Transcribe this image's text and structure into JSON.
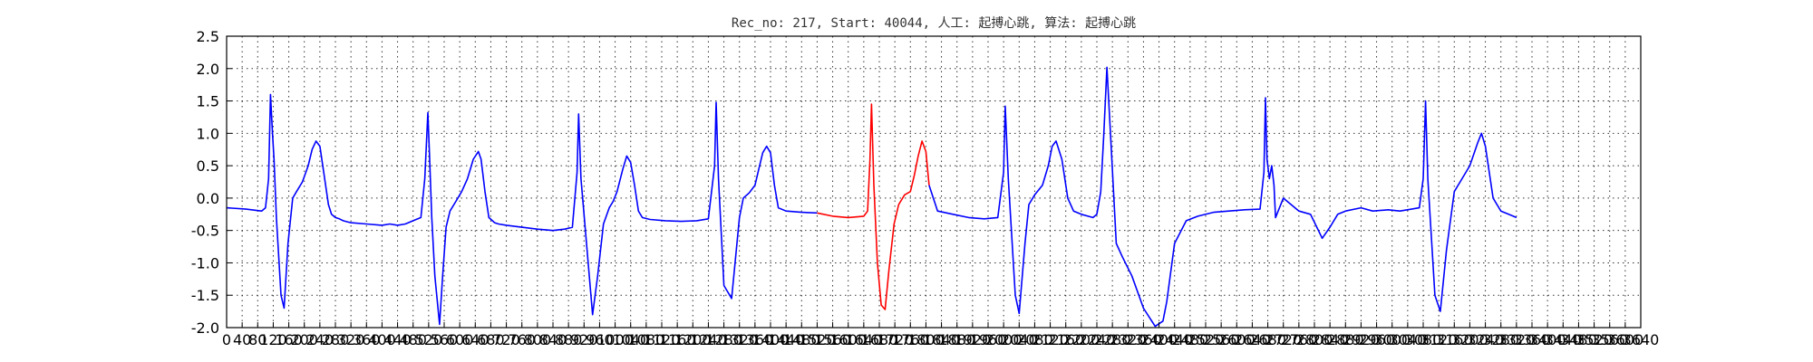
{
  "chart_data": {
    "type": "line",
    "title": "Rec_no: 217, Start: 40044, 人工: 起搏心跳, 算法: 起搏心跳",
    "xlabel": "",
    "ylabel": "",
    "xlim": [
      0,
      3640
    ],
    "ylim": [
      -2.0,
      2.5
    ],
    "grid": true,
    "xtick_step": 40,
    "y_ticks": [
      -2.0,
      -1.5,
      -1.0,
      -0.5,
      0.0,
      0.5,
      1.0,
      1.5,
      2.0,
      2.5
    ],
    "series": [
      {
        "color": "#0000ff",
        "x": [
          0,
          50,
          90,
          100,
          108,
          113,
          118,
          122,
          128,
          140,
          148,
          158,
          170,
          180,
          195,
          210,
          220,
          230,
          240,
          250,
          262,
          270,
          280,
          290,
          300,
          320,
          360,
          400,
          420,
          440,
          460,
          480,
          500,
          510,
          518,
          522,
          528,
          536,
          548,
          556,
          565,
          575,
          590,
          605,
          620,
          635,
          648,
          655,
          665,
          675,
          690,
          700,
          720,
          760,
          800,
          840,
          870,
          890,
          902,
          906,
          912,
          925,
          942,
          955,
          970,
          985,
          995,
          1005,
          1020,
          1030,
          1040,
          1050,
          1060,
          1070,
          1090,
          1130,
          1170,
          1210,
          1240,
          1256,
          1260,
          1266,
          1280,
          1300,
          1320,
          1330,
          1345,
          1360,
          1370,
          1380,
          1390,
          1400,
          1410,
          1420,
          1440,
          1480,
          1520
        ],
        "y": [
          -0.15,
          -0.17,
          -0.2,
          -0.15,
          0.3,
          1.6,
          1.0,
          0.6,
          -0.3,
          -1.5,
          -1.7,
          -0.7,
          0.0,
          0.1,
          0.25,
          0.5,
          0.75,
          0.88,
          0.8,
          0.4,
          -0.1,
          -0.25,
          -0.3,
          -0.32,
          -0.35,
          -0.38,
          -0.4,
          -0.42,
          -0.4,
          -0.42,
          -0.4,
          -0.35,
          -0.3,
          0.3,
          1.32,
          0.7,
          -0.3,
          -1.2,
          -1.95,
          -1.2,
          -0.45,
          -0.2,
          -0.05,
          0.1,
          0.3,
          0.6,
          0.72,
          0.6,
          0.1,
          -0.3,
          -0.38,
          -0.4,
          -0.42,
          -0.45,
          -0.48,
          -0.5,
          -0.48,
          -0.45,
          0.4,
          1.3,
          0.3,
          -0.6,
          -1.8,
          -1.2,
          -0.4,
          -0.15,
          -0.05,
          0.1,
          0.45,
          0.65,
          0.55,
          0.2,
          -0.2,
          -0.3,
          -0.33,
          -0.35,
          -0.36,
          -0.35,
          -0.32,
          0.5,
          1.48,
          0.3,
          -1.35,
          -1.55,
          -0.3,
          0.0,
          0.08,
          0.2,
          0.45,
          0.7,
          0.8,
          0.7,
          0.2,
          -0.15,
          -0.2,
          -0.22,
          -0.23
        ]
      },
      {
        "color": "#ff0000",
        "x": [
          1520,
          1560,
          1600,
          1640,
          1650,
          1656,
          1660,
          1666,
          1675,
          1685,
          1695,
          1705,
          1718,
          1730,
          1745,
          1760,
          1770,
          1780,
          1790,
          1800,
          1808
        ],
        "y": [
          -0.23,
          -0.28,
          -0.3,
          -0.28,
          -0.2,
          0.6,
          1.45,
          0.2,
          -1.0,
          -1.65,
          -1.72,
          -1.1,
          -0.4,
          -0.1,
          0.05,
          0.1,
          0.35,
          0.65,
          0.88,
          0.72,
          0.2
        ]
      },
      {
        "color": "#0000ff",
        "x": [
          1808,
          1830,
          1870,
          1910,
          1950,
          1985,
          2000,
          2004,
          2012,
          2030,
          2040,
          2055,
          2065,
          2080,
          2100,
          2115,
          2125,
          2135,
          2150,
          2165,
          2180,
          2200,
          2230,
          2240,
          2250,
          2258,
          2266,
          2275,
          2290,
          2305,
          2330,
          2360,
          2390,
          2410,
          2420,
          2440,
          2470,
          2500,
          2540,
          2580,
          2620,
          2660,
          2670,
          2674,
          2678,
          2684,
          2690,
          2696,
          2700,
          2720,
          2760,
          2790,
          2820,
          2840,
          2860,
          2880,
          2920,
          2950,
          2990,
          3020,
          3050,
          3070,
          3080,
          3086,
          3092,
          3110,
          3124,
          3140,
          3160,
          3180,
          3200,
          3220,
          3230,
          3240,
          3260,
          3280,
          3300,
          3320
        ],
        "y": [
          0.2,
          -0.2,
          -0.25,
          -0.3,
          -0.32,
          -0.3,
          0.4,
          1.42,
          0.3,
          -1.5,
          -1.78,
          -0.7,
          -0.1,
          0.05,
          0.2,
          0.5,
          0.8,
          0.88,
          0.6,
          0.0,
          -0.2,
          -0.25,
          -0.3,
          -0.25,
          0.1,
          1.0,
          2.02,
          1.0,
          -0.7,
          -0.9,
          -1.2,
          -1.7,
          -1.98,
          -1.9,
          -1.6,
          -0.7,
          -0.35,
          -0.28,
          -0.22,
          -0.2,
          -0.18,
          -0.17,
          0.4,
          1.55,
          0.6,
          0.3,
          0.5,
          0.2,
          -0.3,
          0.0,
          -0.2,
          -0.25,
          -0.62,
          -0.45,
          -0.25,
          -0.2,
          -0.15,
          -0.2,
          -0.18,
          -0.2,
          -0.17,
          -0.15,
          0.3,
          1.5,
          0.3,
          -1.5,
          -1.75,
          -0.8,
          0.1,
          0.3,
          0.5,
          0.85,
          1.0,
          0.8,
          0.0,
          -0.2,
          -0.25,
          -0.3
        ]
      }
    ]
  }
}
